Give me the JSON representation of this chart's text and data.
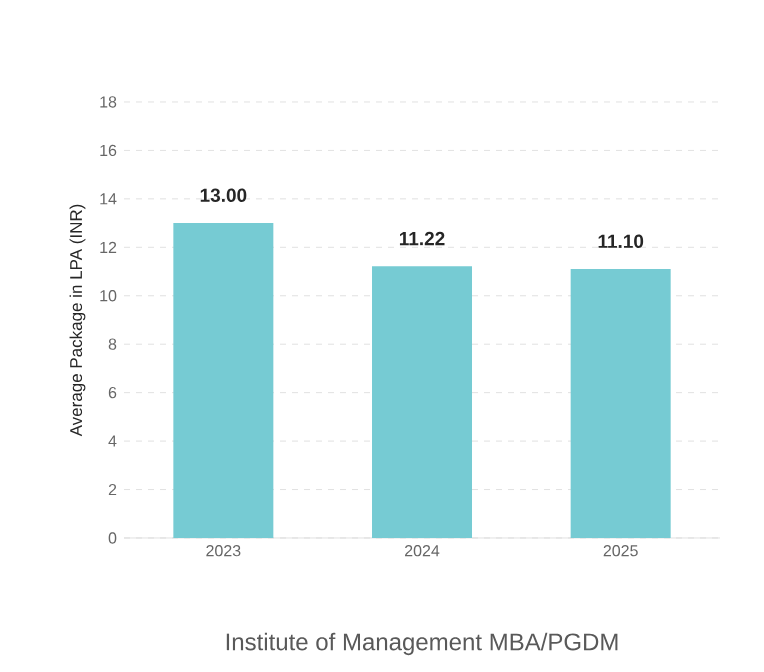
{
  "chart_data": {
    "type": "bar",
    "title": "Institute of Management MBA/PGDM",
    "ylabel": "Average Package in LPA (INR)",
    "categories": [
      "2023",
      "2024",
      "2025"
    ],
    "values": [
      13.0,
      11.22,
      11.1
    ],
    "value_labels": [
      "13.00",
      "11.22",
      "11.10"
    ],
    "color": "#76cbd3",
    "ylim": [
      0,
      18
    ],
    "yticks": [
      0,
      2,
      4,
      6,
      8,
      10,
      12,
      14,
      16,
      18
    ],
    "grid": "y"
  }
}
